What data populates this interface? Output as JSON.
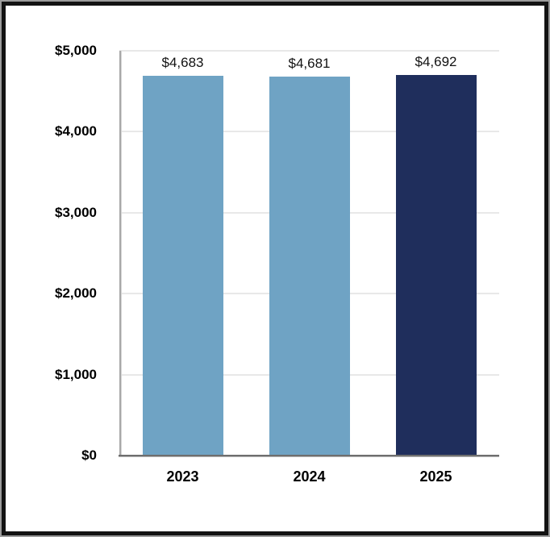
{
  "chart_data": {
    "type": "bar",
    "title": "",
    "xlabel": "",
    "ylabel": "",
    "categories": [
      "2023",
      "2024",
      "2025"
    ],
    "values": [
      4683,
      4681,
      4692
    ],
    "value_labels": [
      "$4,683",
      "$4,681",
      "$4,692"
    ],
    "ylim": [
      0,
      5000
    ],
    "y_ticks": [
      {
        "value": 0,
        "label": "$0"
      },
      {
        "value": 1000,
        "label": "$1,000"
      },
      {
        "value": 2000,
        "label": "$2,000"
      },
      {
        "value": 3000,
        "label": "$3,000"
      },
      {
        "value": 4000,
        "label": "$4,000"
      },
      {
        "value": 5000,
        "label": "$5,000"
      }
    ],
    "grid": true,
    "legend_position": "none",
    "bar_colors": [
      "#6FA3C4",
      "#6FA3C4",
      "#1F2E5C"
    ],
    "colors": {
      "bar_light_blue": "#6FA3C4",
      "bar_dark_navy": "#1F2E5C",
      "gridline": "#E8E8E8",
      "y_axis_line": "#A8A8A8",
      "x_axis_line": "#6E6E6E",
      "text": "#000000",
      "frame_border": "#131313",
      "frame_outer_edge": "#9C9C9C",
      "background": "#FFFFFF"
    }
  }
}
